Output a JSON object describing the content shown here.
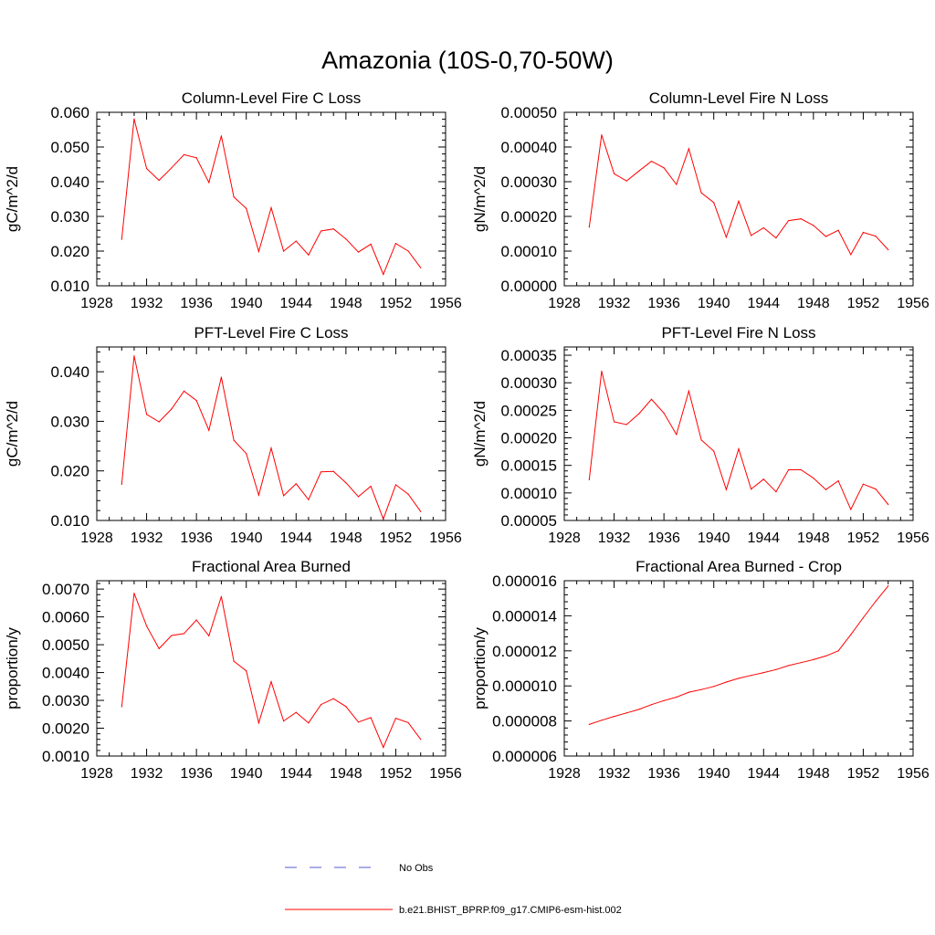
{
  "figure_title": "Amazonia (10S-0,70-50W)",
  "colors": {
    "model": "#ff0000",
    "obs": "#5a5ad2",
    "axis": "#000000"
  },
  "legend": [
    {
      "label": "No Obs",
      "style": "dashed",
      "color": "#5a5ad2"
    },
    {
      "label": "b.e21.BHIST_BPRP.f09_g17.CMIP6-esm-hist.002",
      "style": "solid",
      "color": "#ff0000"
    }
  ],
  "chart_data": [
    {
      "type": "line",
      "title": "Column-Level Fire C Loss",
      "ylabel": "gC/m^2/d",
      "xlim": [
        1928,
        1956
      ],
      "ylim": [
        0.01,
        0.06
      ],
      "xticks": [
        1928,
        1932,
        1936,
        1940,
        1944,
        1948,
        1952,
        1956
      ],
      "yticks": [
        0.01,
        0.02,
        0.03,
        0.04,
        0.05,
        0.06
      ],
      "ytick_labels": [
        "0.010",
        "0.020",
        "0.030",
        "0.040",
        "0.050",
        "0.060"
      ],
      "x": [
        1930,
        1931,
        1932,
        1933,
        1934,
        1935,
        1936,
        1937,
        1938,
        1939,
        1940,
        1941,
        1942,
        1943,
        1944,
        1945,
        1946,
        1947,
        1948,
        1949,
        1950,
        1951,
        1952,
        1953,
        1954
      ],
      "series": [
        {
          "name": "b.e21.BHIST_BPRP.f09_g17.CMIP6-esm-hist.002",
          "values": [
            0.0234,
            0.0581,
            0.0438,
            0.0404,
            0.044,
            0.0478,
            0.0469,
            0.0398,
            0.0532,
            0.0356,
            0.0323,
            0.0199,
            0.0325,
            0.02,
            0.0229,
            0.0189,
            0.0258,
            0.0264,
            0.0235,
            0.0197,
            0.022,
            0.0133,
            0.0222,
            0.02,
            0.0152
          ]
        }
      ]
    },
    {
      "type": "line",
      "title": "Column-Level Fire N Loss",
      "ylabel": "gN/m^2/d",
      "xlim": [
        1928,
        1956
      ],
      "ylim": [
        0.0,
        0.0005
      ],
      "xticks": [
        1928,
        1932,
        1936,
        1940,
        1944,
        1948,
        1952,
        1956
      ],
      "yticks": [
        0.0,
        0.0001,
        0.0002,
        0.0003,
        0.0004,
        0.0005
      ],
      "ytick_labels": [
        "0.00000",
        "0.00010",
        "0.00020",
        "0.00030",
        "0.00040",
        "0.00050"
      ],
      "x": [
        1930,
        1931,
        1932,
        1933,
        1934,
        1935,
        1936,
        1937,
        1938,
        1939,
        1940,
        1941,
        1942,
        1943,
        1944,
        1945,
        1946,
        1947,
        1948,
        1949,
        1950,
        1951,
        1952,
        1953,
        1954
      ],
      "series": [
        {
          "name": "b.e21.BHIST_BPRP.f09_g17.CMIP6-esm-hist.002",
          "values": [
            0.000169,
            0.000435,
            0.000323,
            0.000302,
            0.000331,
            0.000359,
            0.00034,
            0.000292,
            0.000395,
            0.000268,
            0.00024,
            0.00014,
            0.000244,
            0.000145,
            0.000167,
            0.000138,
            0.000188,
            0.000193,
            0.000174,
            0.000142,
            0.00016,
            9e-05,
            0.000154,
            0.000143,
            0.000104
          ]
        }
      ]
    },
    {
      "type": "line",
      "title": "PFT-Level Fire C Loss",
      "ylabel": "gC/m^2/d",
      "xlim": [
        1928,
        1956
      ],
      "ylim": [
        0.01,
        0.045
      ],
      "xticks": [
        1928,
        1932,
        1936,
        1940,
        1944,
        1948,
        1952,
        1956
      ],
      "yticks": [
        0.01,
        0.02,
        0.03,
        0.04
      ],
      "ytick_labels": [
        "0.010",
        "0.020",
        "0.030",
        "0.040"
      ],
      "x": [
        1930,
        1931,
        1932,
        1933,
        1934,
        1935,
        1936,
        1937,
        1938,
        1939,
        1940,
        1941,
        1942,
        1943,
        1944,
        1945,
        1946,
        1947,
        1948,
        1949,
        1950,
        1951,
        1952,
        1953,
        1954
      ],
      "series": [
        {
          "name": "b.e21.BHIST_BPRP.f09_g17.CMIP6-esm-hist.002",
          "values": [
            0.0173,
            0.0432,
            0.0314,
            0.0299,
            0.0325,
            0.0361,
            0.0342,
            0.0282,
            0.0389,
            0.0262,
            0.0235,
            0.0151,
            0.0246,
            0.015,
            0.0174,
            0.0142,
            0.0198,
            0.0199,
            0.0176,
            0.0148,
            0.0169,
            0.0103,
            0.0172,
            0.0153,
            0.0118
          ]
        }
      ]
    },
    {
      "type": "line",
      "title": "PFT-Level Fire N Loss",
      "ylabel": "gN/m^2/d",
      "xlim": [
        1928,
        1956
      ],
      "ylim": [
        5e-05,
        0.000365
      ],
      "xticks": [
        1928,
        1932,
        1936,
        1940,
        1944,
        1948,
        1952,
        1956
      ],
      "yticks": [
        5e-05,
        0.0001,
        0.00015,
        0.0002,
        0.00025,
        0.0003,
        0.00035
      ],
      "ytick_labels": [
        "0.00005",
        "0.00010",
        "0.00015",
        "0.00020",
        "0.00025",
        "0.00030",
        "0.00035"
      ],
      "x": [
        1930,
        1931,
        1932,
        1933,
        1934,
        1935,
        1936,
        1937,
        1938,
        1939,
        1940,
        1941,
        1942,
        1943,
        1944,
        1945,
        1946,
        1947,
        1948,
        1949,
        1950,
        1951,
        1952,
        1953,
        1954
      ],
      "series": [
        {
          "name": "b.e21.BHIST_BPRP.f09_g17.CMIP6-esm-hist.002",
          "values": [
            0.000124,
            0.000321,
            0.000229,
            0.000224,
            0.000244,
            0.00027,
            0.000245,
            0.000206,
            0.000285,
            0.000196,
            0.000176,
            0.000106,
            0.00018,
            0.000107,
            0.000125,
            0.000102,
            0.000142,
            0.000142,
            0.000127,
            0.000106,
            0.000122,
            7e-05,
            0.000116,
            0.000107,
            7.9e-05
          ]
        }
      ]
    },
    {
      "type": "line",
      "title": "Fractional Area Burned",
      "ylabel": "proportion/y",
      "xlim": [
        1928,
        1956
      ],
      "ylim": [
        0.001,
        0.0073
      ],
      "xticks": [
        1928,
        1932,
        1936,
        1940,
        1944,
        1948,
        1952,
        1956
      ],
      "yticks": [
        0.001,
        0.002,
        0.003,
        0.004,
        0.005,
        0.006,
        0.007
      ],
      "ytick_labels": [
        "0.0010",
        "0.0020",
        "0.0030",
        "0.0040",
        "0.0050",
        "0.0060",
        "0.0070"
      ],
      "x": [
        1930,
        1931,
        1932,
        1933,
        1934,
        1935,
        1936,
        1937,
        1938,
        1939,
        1940,
        1941,
        1942,
        1943,
        1944,
        1945,
        1946,
        1947,
        1948,
        1949,
        1950,
        1951,
        1952,
        1953,
        1954
      ],
      "series": [
        {
          "name": "b.e21.BHIST_BPRP.f09_g17.CMIP6-esm-hist.002",
          "values": [
            0.00277,
            0.00685,
            0.00567,
            0.00486,
            0.00533,
            0.0054,
            0.00589,
            0.00532,
            0.00673,
            0.00441,
            0.00406,
            0.00219,
            0.00367,
            0.00226,
            0.00257,
            0.00219,
            0.00285,
            0.00306,
            0.00278,
            0.00222,
            0.00238,
            0.00131,
            0.00236,
            0.0022,
            0.0016
          ]
        }
      ]
    },
    {
      "type": "line",
      "title": "Fractional Area Burned - Crop",
      "ylabel": "proportion/y",
      "xlim": [
        1928,
        1956
      ],
      "ylim": [
        6e-06,
        1.6e-05
      ],
      "xticks": [
        1928,
        1932,
        1936,
        1940,
        1944,
        1948,
        1952,
        1956
      ],
      "yticks": [
        6e-06,
        8e-06,
        1e-05,
        1.2e-05,
        1.4e-05,
        1.6e-05
      ],
      "ytick_labels": [
        "0.000006",
        "0.000008",
        "0.000010",
        "0.000012",
        "0.000014",
        "0.000016"
      ],
      "x": [
        1930,
        1931,
        1932,
        1933,
        1934,
        1935,
        1936,
        1937,
        1938,
        1939,
        1940,
        1941,
        1942,
        1943,
        1944,
        1945,
        1946,
        1947,
        1948,
        1949,
        1950,
        1951,
        1952,
        1953,
        1954
      ],
      "series": [
        {
          "name": "b.e21.BHIST_BPRP.f09_g17.CMIP6-esm-hist.002",
          "values": [
            7.8e-06,
            8.04e-06,
            8.26e-06,
            8.46e-06,
            8.66e-06,
            8.93e-06,
            9.16e-06,
            9.36e-06,
            9.64e-06,
            9.79e-06,
            9.97e-06,
            1.022e-05,
            1.043e-05,
            1.06e-05,
            1.076e-05,
            1.093e-05,
            1.116e-05,
            1.133e-05,
            1.15e-05,
            1.171e-05,
            1.2e-05,
            1.292e-05,
            1.389e-05,
            1.483e-05,
            1.57e-05
          ]
        }
      ]
    }
  ]
}
